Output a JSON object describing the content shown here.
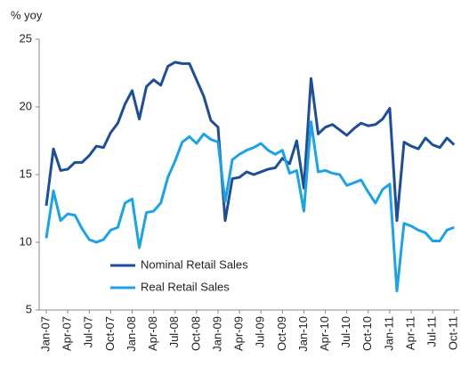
{
  "chart_data": {
    "type": "line",
    "y_label": "% yoy",
    "categories": [
      "Jan-07",
      null,
      null,
      "Apr-07",
      null,
      null,
      "Jul-07",
      null,
      null,
      "Oct-07",
      null,
      null,
      "Jan-08",
      null,
      null,
      "Apr-08",
      null,
      null,
      "Jul-08",
      null,
      null,
      "Oct-08",
      null,
      null,
      "Jan-09",
      null,
      null,
      "Apr-09",
      null,
      null,
      "Jul-09",
      null,
      null,
      "Oct-09",
      null,
      null,
      "Jan-10",
      null,
      null,
      "Apr-10",
      null,
      null,
      "Jul-10",
      null,
      null,
      "Oct-10",
      null,
      null,
      "Jan-11",
      null,
      null,
      "Apr-11",
      null,
      null,
      "Jul-11",
      null,
      null,
      "Oct-11"
    ],
    "series": [
      {
        "name": "Nominal Retail Sales",
        "color": "#1f4e99",
        "values": [
          12.7,
          16.9,
          15.3,
          15.4,
          15.9,
          15.9,
          16.4,
          17.1,
          17.0,
          18.1,
          18.8,
          20.2,
          21.2,
          19.1,
          21.5,
          22.0,
          21.6,
          23.0,
          23.3,
          23.2,
          23.2,
          22.0,
          20.8,
          19.0,
          18.5,
          11.6,
          14.7,
          14.8,
          15.2,
          15.0,
          15.2,
          15.4,
          15.5,
          16.2,
          15.8,
          17.5,
          14.0,
          22.1,
          18.0,
          18.5,
          18.7,
          18.3,
          17.9,
          18.4,
          18.8,
          18.6,
          18.7,
          19.1,
          19.9,
          11.6,
          17.4,
          17.1,
          16.9,
          17.7,
          17.2,
          17.0,
          17.7,
          17.2
        ]
      },
      {
        "name": "Real Retail Sales",
        "color": "#1aa3e8",
        "values": [
          10.3,
          13.8,
          11.6,
          12.1,
          12.0,
          11.0,
          10.2,
          10.0,
          10.2,
          10.9,
          11.1,
          12.9,
          13.2,
          9.6,
          12.2,
          12.3,
          12.9,
          14.8,
          16.0,
          17.4,
          17.8,
          17.3,
          18.0,
          17.6,
          17.4,
          13.0,
          16.1,
          16.5,
          16.8,
          17.0,
          17.3,
          16.8,
          16.5,
          16.8,
          15.1,
          15.3,
          12.3,
          18.9,
          15.2,
          15.3,
          15.1,
          15.0,
          14.2,
          14.4,
          14.6,
          13.7,
          12.9,
          13.9,
          14.3,
          6.4,
          11.4,
          11.2,
          10.9,
          10.7,
          10.1,
          10.1,
          10.9,
          11.1
        ]
      }
    ],
    "ylim": [
      5,
      25
    ],
    "yticks": [
      5,
      10,
      15,
      20,
      25
    ],
    "grid": false,
    "legend": "lower left"
  }
}
